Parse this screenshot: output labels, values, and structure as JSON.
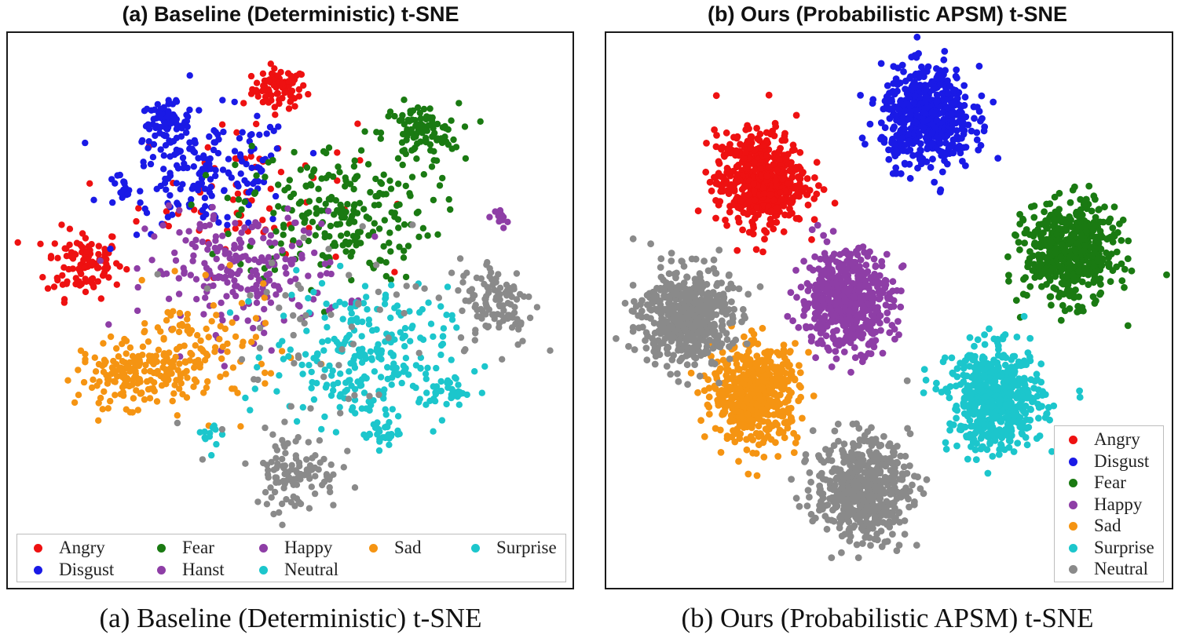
{
  "figure": {
    "panel_a_title": "(a) Baseline (Deterministic) t-SNE",
    "panel_b_title": "(b) Ours (Probabilistic APSM) t-SNE",
    "caption_a": "(a) Baseline (Deterministic) t-SNE",
    "caption_b": "(b) Ours (Probabilistic APSM) t-SNE"
  },
  "colors": {
    "Angry": "#ee1111",
    "Disgust": "#1a1ae6",
    "Fear": "#1a7a12",
    "Happy": "#8e3ea6",
    "Sad": "#f59412",
    "Surprise": "#1cc6cc",
    "Neutral": "#8a8a8a"
  },
  "legend_a": [
    {
      "label": "Angry",
      "class": "Angry"
    },
    {
      "label": "Disgust",
      "class": "Disgust"
    },
    {
      "label": "Fear",
      "class": "Fear"
    },
    {
      "label": "Hanst",
      "class": "Happy"
    },
    {
      "label": "Happy",
      "class": "Happy"
    },
    {
      "label": "Neutral",
      "class": "Surprise"
    },
    {
      "label": "Sad",
      "class": "Sad"
    },
    {
      "label": "Surprise",
      "class": "Surprise"
    }
  ],
  "legend_b": [
    {
      "label": "Angry",
      "class": "Angry"
    },
    {
      "label": "Disgust",
      "class": "Disgust"
    },
    {
      "label": "Fear",
      "class": "Fear"
    },
    {
      "label": "Happy",
      "class": "Happy"
    },
    {
      "label": "Sad",
      "class": "Sad"
    },
    {
      "label": "Surprise",
      "class": "Surprise"
    },
    {
      "label": "Neutral",
      "class": "Neutral"
    }
  ],
  "chart_data": [
    {
      "type": "scatter",
      "title": "(a) Baseline (Deterministic) t-SNE",
      "xlabel": "",
      "ylabel": "",
      "xlim": [
        0,
        100
      ],
      "ylim": [
        0,
        100
      ],
      "axes_ticks": false,
      "legend_position": "bottom",
      "note": "t-SNE embedding; classes heavily overlap. Each series described by approximate cluster centers (data units) with counts.",
      "series": [
        {
          "name": "Angry",
          "clusters": [
            {
              "center": [
                48,
                91
              ],
              "spread": [
                2.5,
                2.0
              ],
              "n": 80
            },
            {
              "center": [
                12,
                56
              ],
              "spread": [
                3.5,
                3.5
              ],
              "n": 110
            },
            {
              "center": [
                42,
                70
              ],
              "spread": [
                10,
                8
              ],
              "n": 70
            }
          ]
        },
        {
          "name": "Disgust",
          "clusters": [
            {
              "center": [
                27,
                84
              ],
              "spread": [
                2.2,
                2.0
              ],
              "n": 70
            },
            {
              "center": [
                35,
                74
              ],
              "spread": [
                8,
                6
              ],
              "n": 180
            },
            {
              "center": [
                19,
                71
              ],
              "spread": [
                1.0,
                0.8
              ],
              "n": 12
            }
          ]
        },
        {
          "name": "Fear",
          "clusters": [
            {
              "center": [
                74,
                82
              ],
              "spread": [
                3.5,
                3.0
              ],
              "n": 100
            },
            {
              "center": [
                58,
                66
              ],
              "spread": [
                9,
                7
              ],
              "n": 230
            }
          ]
        },
        {
          "name": "Happy",
          "clusters": [
            {
              "center": [
                42,
                54
              ],
              "spread": [
                9,
                6
              ],
              "n": 220
            },
            {
              "center": [
                89,
                65
              ],
              "spread": [
                0.6,
                1.0
              ],
              "n": 14
            }
          ]
        },
        {
          "name": "Sad",
          "clusters": [
            {
              "center": [
                21,
                33
              ],
              "spread": [
                5,
                3
              ],
              "n": 150
            },
            {
              "center": [
                32,
                38
              ],
              "spread": [
                8,
                6
              ],
              "n": 130
            }
          ]
        },
        {
          "name": "Surprise",
          "clusters": [
            {
              "center": [
                63,
                37
              ],
              "spread": [
                8,
                7
              ],
              "n": 250
            },
            {
              "center": [
                79,
                30
              ],
              "spread": [
                1.6,
                1.4
              ],
              "n": 35
            },
            {
              "center": [
                67,
                22
              ],
              "spread": [
                1.6,
                1.6
              ],
              "n": 30
            },
            {
              "center": [
                36,
                21
              ],
              "spread": [
                1.0,
                1.6
              ],
              "n": 12
            }
          ]
        },
        {
          "name": "Neutral",
          "clusters": [
            {
              "center": [
                88,
                48
              ],
              "spread": [
                3.5,
                4.5
              ],
              "n": 110
            },
            {
              "center": [
                51,
                14
              ],
              "spread": [
                4,
                4
              ],
              "n": 110
            },
            {
              "center": [
                55,
                45
              ],
              "spread": [
                14,
                12
              ],
              "n": 60
            }
          ]
        }
      ]
    },
    {
      "type": "scatter",
      "title": "(b) Ours (Probabilistic APSM) t-SNE",
      "xlabel": "",
      "ylabel": "",
      "xlim": [
        0,
        100
      ],
      "ylim": [
        0,
        100
      ],
      "axes_ticks": false,
      "legend_position": "bottom-right",
      "note": "t-SNE embedding; seven well-separated class clusters. Approximate cluster centers in data units.",
      "series": [
        {
          "name": "Angry",
          "center": [
            26,
            75
          ],
          "spread": [
            4.2,
            4.5
          ],
          "n": 550
        },
        {
          "name": "Disgust",
          "center": [
            57,
            87
          ],
          "spread": [
            4.2,
            4.6
          ],
          "n": 550
        },
        {
          "name": "Fear",
          "center": [
            84,
            61
          ],
          "spread": [
            4.2,
            4.6
          ],
          "n": 550
        },
        {
          "name": "Happy",
          "center": [
            42,
            52
          ],
          "spread": [
            4.3,
            4.7
          ],
          "n": 550
        },
        {
          "name": "Sad",
          "center": [
            25,
            34
          ],
          "spread": [
            4.0,
            4.6
          ],
          "n": 550
        },
        {
          "name": "Surprise",
          "center": [
            70,
            33
          ],
          "spread": [
            4.4,
            4.8
          ],
          "n": 550
        },
        {
          "name": "Neutral",
          "center": [
            12,
            49
          ],
          "spread": [
            4.2,
            4.6
          ],
          "n": 550
        },
        {
          "name": "Neutral",
          "center": [
            45,
            16
          ],
          "spread": [
            4.4,
            4.8
          ],
          "n": 550
        }
      ]
    }
  ]
}
